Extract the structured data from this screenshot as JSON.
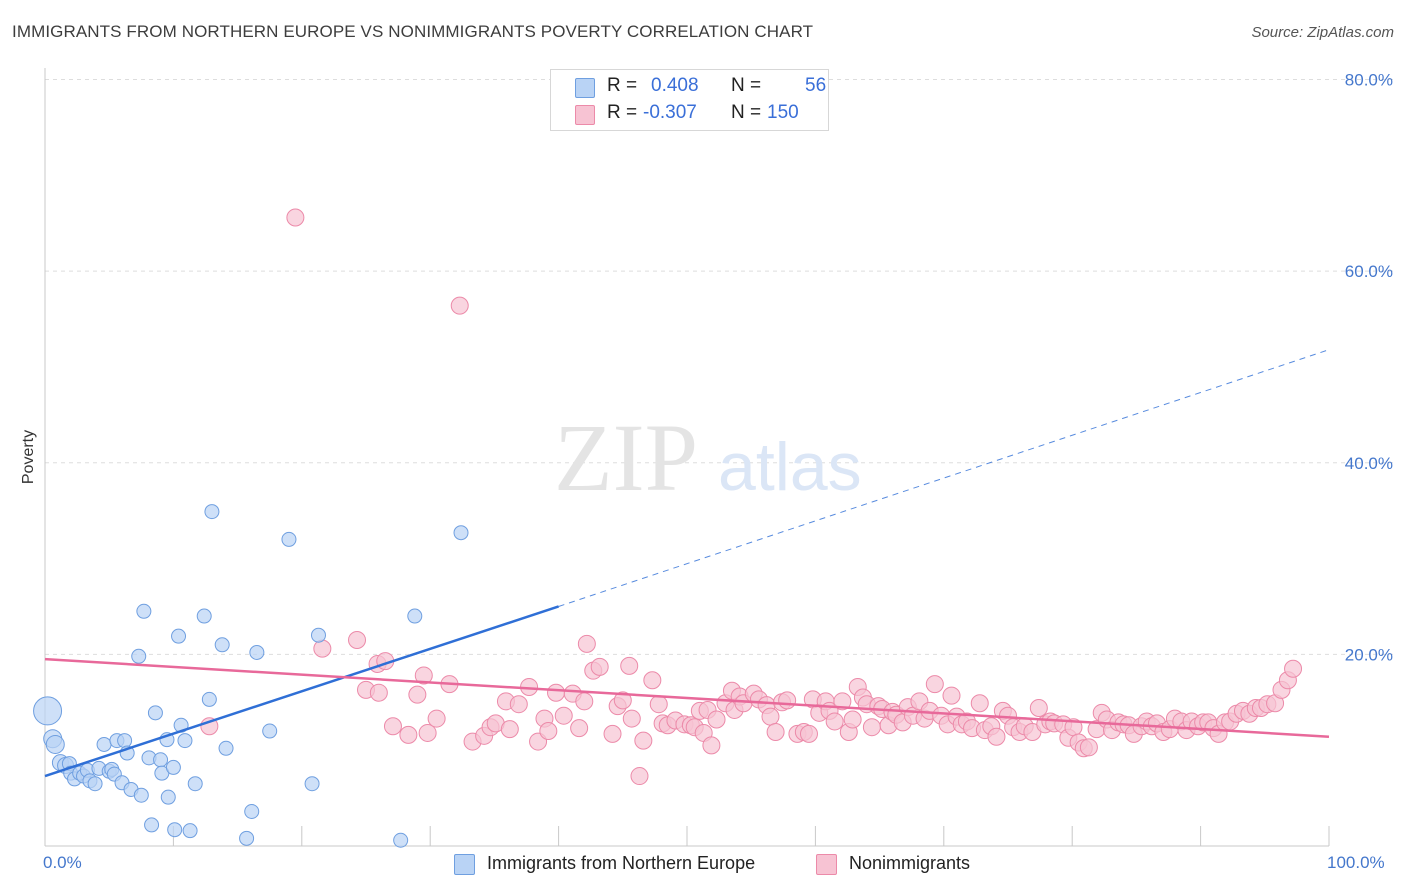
{
  "header": {
    "title": "IMMIGRANTS FROM NORTHERN EUROPE VS NONIMMIGRANTS POVERTY CORRELATION CHART",
    "source": "Source: ZipAtlas.com"
  },
  "legend": {
    "rows": [
      {
        "r_label": "R =",
        "r_value": "0.408",
        "n_label": "N =",
        "n_value": "56"
      },
      {
        "r_label": "R =",
        "r_value": "-0.307",
        "n_label": "N =",
        "n_value": "150"
      }
    ]
  },
  "watermark": {
    "zip": "ZIP",
    "atlas": "atlas"
  },
  "colors": {
    "blue_fill": "#b9d3f5",
    "blue_stroke": "#6f9fe0",
    "blue_line": "#2f6fd6",
    "pink_fill": "#f7c3d3",
    "pink_stroke": "#ec8aa9",
    "pink_line": "#e8699a",
    "tick_text": "#4477cc",
    "grid": "#dddddd"
  },
  "chart_data": {
    "type": "scatter",
    "title": "IMMIGRANTS FROM NORTHERN EUROPE VS NONIMMIGRANTS POVERTY CORRELATION CHART",
    "xlabel": "",
    "ylabel": "Poverty",
    "xlim": [
      0,
      100
    ],
    "ylim": [
      0,
      80
    ],
    "x_tick_labels": [
      "0.0%",
      "100.0%"
    ],
    "y_ticks": [
      20,
      40,
      60,
      80
    ],
    "y_tick_labels": [
      "20.0%",
      "40.0%",
      "60.0%",
      "80.0%"
    ],
    "grid": "horizontal dashed",
    "legend_position": "top-center",
    "series": [
      {
        "name": "Immigrants from Northern Europe",
        "color": "#b9d3f5",
        "R": 0.408,
        "N": 56,
        "trend": {
          "x0": 0,
          "y0": 7.3,
          "x1": 40,
          "y1": 25.0,
          "dashed_to_x": 100,
          "dashed_to_y": 51.8
        },
        "points": [
          [
            0.2,
            14.1,
            14
          ],
          [
            0.6,
            11.2,
            9
          ],
          [
            0.8,
            10.6,
            9
          ],
          [
            1.2,
            8.7,
            8
          ],
          [
            1.6,
            8.4,
            8
          ],
          [
            1.9,
            8.6,
            7
          ],
          [
            2.0,
            7.6,
            7
          ],
          [
            2.3,
            7.0,
            7
          ],
          [
            2.7,
            7.6,
            7
          ],
          [
            3.0,
            7.3,
            7
          ],
          [
            3.3,
            7.9,
            7
          ],
          [
            3.5,
            6.8,
            7
          ],
          [
            3.9,
            6.5,
            7
          ],
          [
            4.2,
            8.1,
            7
          ],
          [
            4.6,
            10.6,
            7
          ],
          [
            5.0,
            7.8,
            7
          ],
          [
            5.2,
            8.0,
            7
          ],
          [
            5.4,
            7.5,
            7
          ],
          [
            5.6,
            11.0,
            7
          ],
          [
            6.0,
            6.6,
            7
          ],
          [
            6.2,
            11.0,
            7
          ],
          [
            6.4,
            9.7,
            7
          ],
          [
            6.7,
            5.9,
            7
          ],
          [
            7.3,
            19.8,
            7
          ],
          [
            7.5,
            5.3,
            7
          ],
          [
            7.7,
            24.5,
            7
          ],
          [
            8.1,
            9.2,
            7
          ],
          [
            8.3,
            2.2,
            7
          ],
          [
            8.6,
            13.9,
            7
          ],
          [
            9.0,
            9.0,
            7
          ],
          [
            9.1,
            7.6,
            7
          ],
          [
            9.5,
            11.1,
            7
          ],
          [
            9.6,
            5.1,
            7
          ],
          [
            10.0,
            8.2,
            7
          ],
          [
            10.1,
            1.7,
            7
          ],
          [
            10.4,
            21.9,
            7
          ],
          [
            10.6,
            12.6,
            7
          ],
          [
            10.9,
            11.0,
            7
          ],
          [
            11.3,
            1.6,
            7
          ],
          [
            11.7,
            6.5,
            7
          ],
          [
            12.4,
            24.0,
            7
          ],
          [
            12.8,
            15.3,
            7
          ],
          [
            13.0,
            34.9,
            7
          ],
          [
            13.8,
            21.0,
            7
          ],
          [
            14.1,
            10.2,
            7
          ],
          [
            15.7,
            0.8,
            7
          ],
          [
            16.1,
            3.6,
            7
          ],
          [
            16.5,
            20.2,
            7
          ],
          [
            17.5,
            12.0,
            7
          ],
          [
            19.0,
            32.0,
            7
          ],
          [
            20.8,
            6.5,
            7
          ],
          [
            21.3,
            22.0,
            7
          ],
          [
            27.7,
            0.6,
            7
          ],
          [
            28.8,
            24.0,
            7
          ],
          [
            32.4,
            32.7,
            7
          ]
        ]
      },
      {
        "name": "Nonimmigrants",
        "color": "#f7c3d3",
        "R": -0.307,
        "N": 150,
        "trend": {
          "x0": 0,
          "y0": 19.5,
          "x1": 100,
          "y1": 11.4
        },
        "points": [
          [
            12.8,
            12.5
          ],
          [
            19.5,
            65.6
          ],
          [
            21.6,
            20.6
          ],
          [
            24.3,
            21.5
          ],
          [
            25.0,
            16.3
          ],
          [
            25.9,
            19.0
          ],
          [
            26.0,
            16.0
          ],
          [
            26.5,
            19.3
          ],
          [
            27.1,
            12.5
          ],
          [
            28.3,
            11.6
          ],
          [
            29.0,
            15.8
          ],
          [
            29.5,
            17.8
          ],
          [
            29.8,
            11.8
          ],
          [
            30.5,
            13.3
          ],
          [
            31.5,
            16.9
          ],
          [
            32.3,
            56.4
          ],
          [
            33.3,
            10.9
          ],
          [
            34.2,
            11.5
          ],
          [
            34.7,
            12.4
          ],
          [
            35.1,
            12.8
          ],
          [
            35.9,
            15.1
          ],
          [
            36.2,
            12.2
          ],
          [
            36.9,
            14.8
          ],
          [
            37.7,
            16.6
          ],
          [
            38.4,
            10.9
          ],
          [
            38.9,
            13.3
          ],
          [
            39.2,
            12.0
          ],
          [
            39.8,
            16.0
          ],
          [
            40.4,
            13.6
          ],
          [
            41.1,
            15.9
          ],
          [
            41.6,
            12.3
          ],
          [
            42.0,
            15.1
          ],
          [
            42.2,
            21.1
          ],
          [
            42.7,
            18.3
          ],
          [
            43.2,
            18.7
          ],
          [
            44.2,
            11.7
          ],
          [
            44.6,
            14.6
          ],
          [
            45.0,
            15.2
          ],
          [
            45.5,
            18.8
          ],
          [
            45.7,
            13.3
          ],
          [
            46.3,
            7.3
          ],
          [
            46.6,
            11.0
          ],
          [
            47.3,
            17.3
          ],
          [
            47.8,
            14.8
          ],
          [
            48.1,
            12.8
          ],
          [
            48.5,
            12.6
          ],
          [
            49.1,
            13.1
          ],
          [
            49.8,
            12.7
          ],
          [
            50.3,
            12.6
          ],
          [
            50.6,
            12.4
          ],
          [
            51.0,
            14.1
          ],
          [
            51.3,
            11.8
          ],
          [
            51.6,
            14.2
          ],
          [
            51.9,
            10.5
          ],
          [
            52.3,
            13.2
          ],
          [
            53.0,
            14.9
          ],
          [
            53.5,
            16.2
          ],
          [
            53.7,
            14.2
          ],
          [
            54.1,
            15.6
          ],
          [
            54.4,
            14.9
          ],
          [
            55.2,
            15.9
          ],
          [
            55.6,
            15.3
          ],
          [
            56.2,
            14.7
          ],
          [
            56.5,
            13.5
          ],
          [
            56.9,
            11.9
          ],
          [
            57.4,
            15.0
          ],
          [
            57.8,
            15.2
          ],
          [
            58.6,
            11.7
          ],
          [
            59.1,
            11.9
          ],
          [
            59.5,
            11.7
          ],
          [
            59.8,
            15.3
          ],
          [
            60.3,
            13.9
          ],
          [
            60.8,
            15.1
          ],
          [
            61.1,
            14.1
          ],
          [
            61.5,
            13.0
          ],
          [
            62.1,
            15.1
          ],
          [
            62.6,
            11.9
          ],
          [
            62.9,
            13.2
          ],
          [
            63.3,
            16.6
          ],
          [
            63.7,
            15.5
          ],
          [
            64.0,
            14.8
          ],
          [
            64.4,
            12.4
          ],
          [
            64.9,
            14.6
          ],
          [
            65.2,
            14.3
          ],
          [
            65.7,
            12.6
          ],
          [
            66.0,
            14.0
          ],
          [
            66.3,
            13.7
          ],
          [
            66.8,
            12.9
          ],
          [
            67.2,
            14.5
          ],
          [
            67.6,
            13.6
          ],
          [
            68.1,
            15.1
          ],
          [
            68.5,
            13.3
          ],
          [
            68.9,
            14.1
          ],
          [
            69.3,
            16.9
          ],
          [
            69.8,
            13.6
          ],
          [
            70.3,
            12.7
          ],
          [
            70.6,
            15.7
          ],
          [
            71.0,
            13.5
          ],
          [
            71.4,
            12.7
          ],
          [
            71.8,
            13.0
          ],
          [
            72.2,
            12.3
          ],
          [
            72.8,
            14.9
          ],
          [
            73.2,
            12.1
          ],
          [
            73.7,
            12.5
          ],
          [
            74.1,
            11.4
          ],
          [
            74.6,
            14.1
          ],
          [
            75.0,
            13.6
          ],
          [
            75.4,
            12.4
          ],
          [
            75.9,
            11.9
          ],
          [
            76.3,
            12.5
          ],
          [
            76.9,
            11.9
          ],
          [
            77.4,
            14.4
          ],
          [
            77.9,
            12.7
          ],
          [
            78.3,
            13.0
          ],
          [
            78.6,
            12.8
          ],
          [
            79.3,
            12.7
          ],
          [
            79.7,
            11.3
          ],
          [
            80.1,
            12.4
          ],
          [
            80.5,
            10.8
          ],
          [
            80.9,
            10.2
          ],
          [
            81.3,
            10.3
          ],
          [
            81.9,
            12.2
          ],
          [
            82.3,
            13.9
          ],
          [
            82.7,
            13.2
          ],
          [
            83.1,
            12.1
          ],
          [
            83.6,
            12.9
          ],
          [
            84.0,
            12.7
          ],
          [
            84.4,
            12.6
          ],
          [
            84.8,
            11.7
          ],
          [
            85.4,
            12.5
          ],
          [
            85.8,
            13.0
          ],
          [
            86.2,
            12.5
          ],
          [
            86.6,
            12.8
          ],
          [
            87.1,
            11.9
          ],
          [
            87.6,
            12.2
          ],
          [
            88.0,
            13.3
          ],
          [
            88.5,
            13.0
          ],
          [
            88.9,
            12.1
          ],
          [
            89.3,
            13.0
          ],
          [
            89.8,
            12.5
          ],
          [
            90.2,
            12.9
          ],
          [
            90.6,
            12.9
          ],
          [
            91.0,
            12.3
          ],
          [
            91.4,
            11.7
          ],
          [
            91.9,
            12.9
          ],
          [
            92.3,
            13.0
          ],
          [
            92.8,
            13.8
          ],
          [
            93.3,
            14.1
          ],
          [
            93.8,
            13.8
          ],
          [
            94.3,
            14.4
          ],
          [
            94.7,
            14.4
          ],
          [
            95.2,
            14.8
          ],
          [
            95.8,
            14.9
          ],
          [
            96.3,
            16.3
          ],
          [
            96.8,
            17.3
          ],
          [
            97.2,
            18.5
          ]
        ]
      }
    ]
  },
  "bottom_legend": {
    "items": [
      {
        "label": "Immigrants from Northern Europe",
        "color": "#b9d3f5"
      },
      {
        "label": "Nonimmigrants",
        "color": "#f7c3d3"
      }
    ]
  }
}
